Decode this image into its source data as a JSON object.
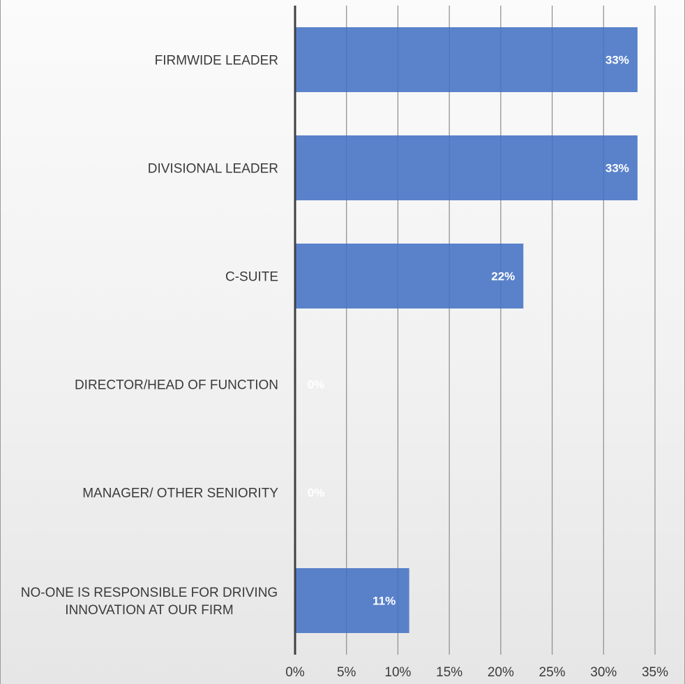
{
  "chart_data": {
    "type": "bar",
    "orientation": "horizontal",
    "categories": [
      "FIRMWIDE LEADER",
      "DIVISIONAL LEADER",
      "C-SUITE",
      "DIRECTOR/HEAD OF FUNCTION",
      "MANAGER/ OTHER SENIORITY",
      "NO-ONE IS RESPONSIBLE FOR DRIVING INNOVATION AT OUR FIRM"
    ],
    "values": [
      33.3,
      33.3,
      22.2,
      0,
      0,
      11.1
    ],
    "data_labels": [
      "33%",
      "33%",
      "22%",
      "0%",
      "0%",
      "11%"
    ],
    "xlim": [
      0,
      35
    ],
    "x_ticks": [
      0,
      5,
      10,
      15,
      20,
      25,
      30,
      35
    ],
    "x_tick_labels": [
      "0%",
      "5%",
      "10%",
      "15%",
      "20%",
      "25%",
      "30%",
      "35%"
    ],
    "title": "",
    "xlabel": "",
    "ylabel": "",
    "grid": true,
    "legend": "none",
    "colors": {
      "bar": "#4472c4",
      "grid": "#8c8c8c",
      "axis": "#404040",
      "data_label": "#ffffff"
    }
  }
}
